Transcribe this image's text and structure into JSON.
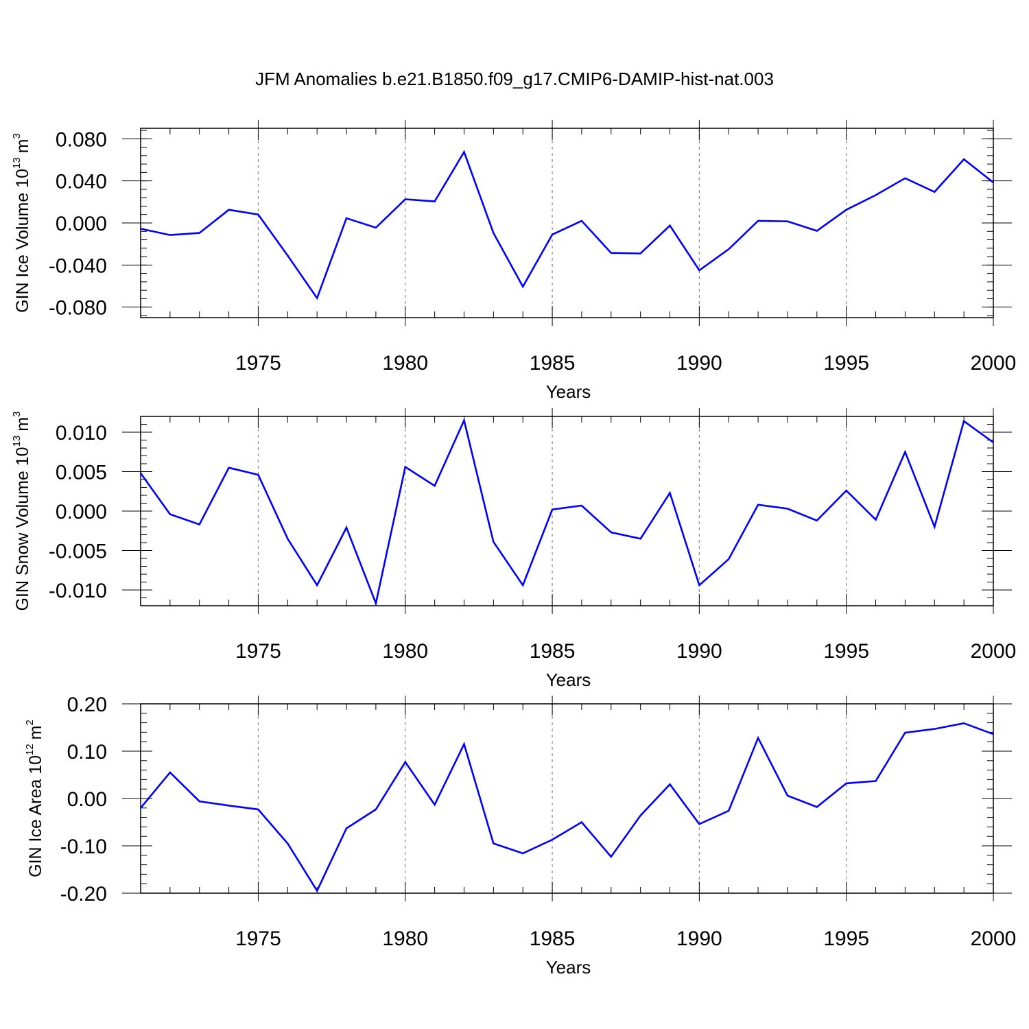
{
  "title": "JFM Anomalies b.e21.B1850.f09_g17.CMIP6-DAMIP-hist-nat.003",
  "line_color": "#0000ff",
  "chart_data": [
    {
      "type": "line",
      "title": "JFM Anomalies b.e21.B1850.f09_g17.CMIP6-DAMIP-hist-nat.003",
      "xlabel": "Years",
      "ylabel": {
        "text": "GIN Ice Volume 10",
        "exp": "13",
        "unit": "m",
        "unit_exp": "3"
      },
      "xlim": [
        1971,
        2000
      ],
      "ylim": [
        -0.09,
        0.09
      ],
      "xticks": [
        1975,
        1980,
        1985,
        1990,
        1995,
        2000
      ],
      "yticks": [
        0.08,
        0.04,
        0.0,
        -0.04,
        -0.08
      ],
      "ytick_labels": [
        "0.080",
        "0.040",
        "0.000",
        "-0.040",
        "-0.080"
      ],
      "grid": "dashed vertical at major x ticks",
      "x": [
        1971,
        1972,
        1973,
        1974,
        1975,
        1976,
        1977,
        1978,
        1979,
        1980,
        1981,
        1982,
        1983,
        1984,
        1985,
        1986,
        1987,
        1988,
        1989,
        1990,
        1991,
        1992,
        1993,
        1994,
        1995,
        1996,
        1997,
        1998,
        1999,
        2000
      ],
      "values": [
        -0.0055,
        -0.0115,
        -0.0095,
        0.0125,
        0.008,
        -0.031,
        -0.0715,
        0.0045,
        -0.0045,
        0.0225,
        0.0205,
        0.0675,
        -0.0095,
        -0.0605,
        -0.011,
        0.002,
        -0.0285,
        -0.029,
        -0.0025,
        -0.045,
        -0.025,
        0.002,
        0.0015,
        -0.0075,
        0.0125,
        0.0265,
        0.0425,
        0.0295,
        0.0605,
        0.0385
      ]
    },
    {
      "type": "line",
      "xlabel": "Years",
      "ylabel": {
        "text": "GIN Snow Volume 10",
        "exp": "13",
        "unit": "m",
        "unit_exp": "3"
      },
      "xlim": [
        1971,
        2000
      ],
      "ylim": [
        -0.012,
        0.012
      ],
      "xticks": [
        1975,
        1980,
        1985,
        1990,
        1995,
        2000
      ],
      "yticks": [
        0.01,
        0.005,
        0.0,
        -0.005,
        -0.01
      ],
      "ytick_labels": [
        "0.010",
        "0.005",
        "0.000",
        "-0.005",
        "-0.010"
      ],
      "grid": "dashed vertical at major x ticks",
      "x": [
        1971,
        1972,
        1973,
        1974,
        1975,
        1976,
        1977,
        1978,
        1979,
        1980,
        1981,
        1982,
        1983,
        1984,
        1985,
        1986,
        1987,
        1988,
        1989,
        1990,
        1991,
        1992,
        1993,
        1994,
        1995,
        1996,
        1997,
        1998,
        1999,
        2000
      ],
      "values": [
        0.0048,
        -0.0004,
        -0.0017,
        0.0055,
        0.0046,
        -0.0035,
        -0.0094,
        -0.0021,
        -0.0117,
        0.0056,
        0.0032,
        0.0115,
        -0.0039,
        -0.0094,
        0.0002,
        0.0007,
        -0.0027,
        -0.0035,
        0.0023,
        -0.0094,
        -0.0061,
        0.0008,
        0.0003,
        -0.0012,
        0.0026,
        -0.0011,
        0.0075,
        -0.002,
        0.0114,
        0.0087
      ]
    },
    {
      "type": "line",
      "xlabel": "Years",
      "ylabel": {
        "text": "GIN Ice Area 10",
        "exp": "12",
        "unit": "m",
        "unit_exp": "2"
      },
      "xlim": [
        1971,
        2000
      ],
      "ylim": [
        -0.2,
        0.2
      ],
      "xticks": [
        1975,
        1980,
        1985,
        1990,
        1995,
        2000
      ],
      "yticks": [
        0.2,
        0.1,
        0.0,
        -0.1,
        -0.2
      ],
      "ytick_labels": [
        "0.20",
        "0.10",
        "0.00",
        "-0.10",
        "-0.20"
      ],
      "grid": "dashed vertical at major x ticks",
      "x": [
        1971,
        1972,
        1973,
        1974,
        1975,
        1976,
        1977,
        1978,
        1979,
        1980,
        1981,
        1982,
        1983,
        1984,
        1985,
        1986,
        1987,
        1988,
        1989,
        1990,
        1991,
        1992,
        1993,
        1994,
        1995,
        1996,
        1997,
        1998,
        1999,
        2000
      ],
      "values": [
        -0.02,
        0.055,
        -0.006,
        -0.015,
        -0.023,
        -0.095,
        -0.195,
        -0.063,
        -0.023,
        0.077,
        -0.013,
        0.115,
        -0.095,
        -0.116,
        -0.087,
        -0.05,
        -0.123,
        -0.036,
        0.03,
        -0.054,
        -0.026,
        0.128,
        0.006,
        -0.018,
        0.032,
        0.037,
        0.139,
        0.147,
        0.159,
        0.136
      ]
    }
  ]
}
